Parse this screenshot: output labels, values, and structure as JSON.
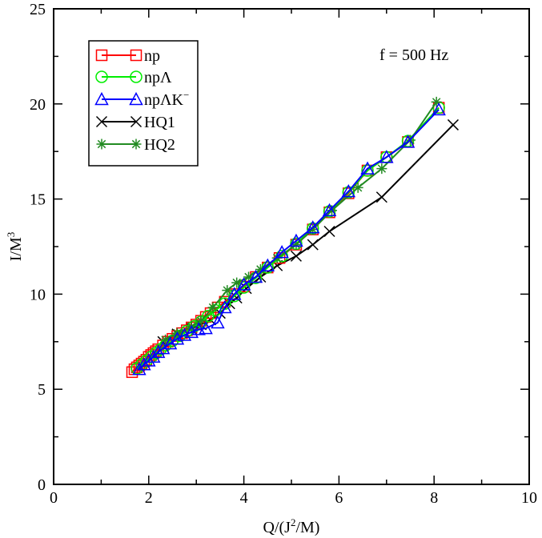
{
  "chart_data": {
    "type": "line",
    "title": "",
    "annotation": "f = 500 Hz",
    "xlabel": {
      "base": "Q/(J",
      "sup": "2",
      "tail": "/M)"
    },
    "ylabel": {
      "base": "I/M",
      "sup": "3"
    },
    "xlim": [
      0,
      10
    ],
    "ylim": [
      0,
      25
    ],
    "xticks": [
      0,
      2,
      4,
      6,
      8,
      10
    ],
    "xtick_labels": [
      "0",
      "2",
      "4",
      "6",
      "8",
      "10"
    ],
    "yticks": [
      0,
      5,
      10,
      15,
      20,
      25
    ],
    "ytick_labels": [
      "0",
      "5",
      "10",
      "15",
      "20",
      "25"
    ],
    "legend_position": "top-left",
    "series": [
      {
        "name": "np",
        "label": "np",
        "color": "#ff0000",
        "marker": "square",
        "x": [
          1.65,
          1.7,
          1.75,
          1.8,
          1.85,
          1.9,
          1.95,
          2.0,
          2.05,
          2.1,
          2.15,
          2.2,
          2.3,
          2.4,
          2.5,
          2.6,
          2.7,
          2.8,
          2.9,
          3.0,
          3.1,
          3.2,
          3.3,
          3.45,
          3.6,
          3.8,
          4.0,
          4.25,
          4.5,
          4.75,
          5.1,
          5.45,
          5.8,
          6.2,
          6.6,
          7.0,
          7.45,
          8.1
        ],
        "y": [
          5.9,
          6.05,
          6.15,
          6.25,
          6.35,
          6.45,
          6.55,
          6.7,
          6.8,
          6.9,
          7.0,
          7.1,
          7.3,
          7.5,
          7.65,
          7.8,
          7.95,
          8.1,
          8.25,
          8.4,
          8.6,
          8.8,
          9.0,
          9.3,
          9.6,
          10.0,
          10.4,
          10.9,
          11.4,
          11.9,
          12.6,
          13.4,
          14.3,
          15.3,
          16.5,
          17.2,
          18.0,
          19.8
        ]
      },
      {
        "name": "npLambda",
        "label": "npΛ",
        "color": "#00ee00",
        "marker": "circle",
        "x": [
          1.75,
          1.85,
          1.95,
          2.05,
          2.15,
          2.25,
          2.35,
          2.5,
          2.65,
          2.8,
          2.95,
          3.1,
          3.25,
          3.4,
          3.6,
          3.8,
          4.0,
          4.25,
          4.5,
          4.8,
          5.1,
          5.45,
          5.8,
          6.2,
          6.6,
          7.0,
          7.45,
          8.1
        ],
        "y": [
          6.1,
          6.3,
          6.5,
          6.7,
          6.9,
          7.1,
          7.3,
          7.55,
          7.8,
          8.05,
          8.3,
          8.55,
          8.85,
          9.15,
          9.5,
          9.9,
          10.35,
          10.85,
          11.4,
          12.0,
          12.65,
          13.45,
          14.35,
          15.35,
          16.5,
          17.2,
          18.05,
          19.8
        ]
      },
      {
        "name": "npLambdaK",
        "label": "npΛK",
        "label_sup": "−",
        "color": "#0000ff",
        "marker": "triangle",
        "x": [
          1.8,
          1.9,
          2.0,
          2.1,
          2.2,
          2.3,
          2.45,
          2.6,
          2.75,
          2.9,
          3.05,
          3.2,
          3.45,
          3.6,
          3.8,
          4.0,
          4.25,
          4.5,
          4.8,
          5.1,
          5.45,
          5.8,
          6.2,
          6.6,
          7.0,
          7.45,
          8.1
        ],
        "y": [
          6.05,
          6.3,
          6.5,
          6.7,
          6.95,
          7.15,
          7.4,
          7.65,
          7.85,
          8.0,
          8.15,
          8.2,
          8.5,
          9.3,
          10.0,
          10.5,
          10.9,
          11.5,
          12.2,
          12.8,
          13.5,
          14.4,
          15.4,
          16.6,
          17.2,
          18.0,
          19.7
        ]
      },
      {
        "name": "HQ1",
        "label": "HQ1",
        "color": "#000000",
        "marker": "x",
        "x": [
          2.3,
          2.6,
          2.9,
          3.1,
          3.3,
          3.5,
          3.7,
          3.85,
          4.05,
          4.35,
          4.7,
          5.1,
          5.45,
          5.8,
          6.9,
          8.4
        ],
        "y": [
          7.5,
          7.9,
          8.2,
          8.4,
          8.65,
          9.0,
          9.5,
          9.8,
          10.3,
          10.9,
          11.5,
          12.0,
          12.6,
          13.3,
          15.1,
          18.9
        ]
      },
      {
        "name": "HQ2",
        "label": "HQ2",
        "color": "#228b22",
        "marker": "star",
        "x": [
          2.35,
          2.6,
          2.9,
          3.1,
          3.35,
          3.65,
          3.85,
          4.1,
          4.35,
          4.7,
          5.1,
          5.45,
          5.85,
          6.4,
          6.9,
          7.5,
          8.05
        ],
        "y": [
          7.6,
          7.95,
          8.3,
          8.6,
          9.3,
          10.2,
          10.6,
          10.9,
          11.3,
          11.9,
          12.6,
          13.4,
          14.4,
          15.6,
          16.6,
          18.1,
          20.1
        ]
      }
    ]
  }
}
